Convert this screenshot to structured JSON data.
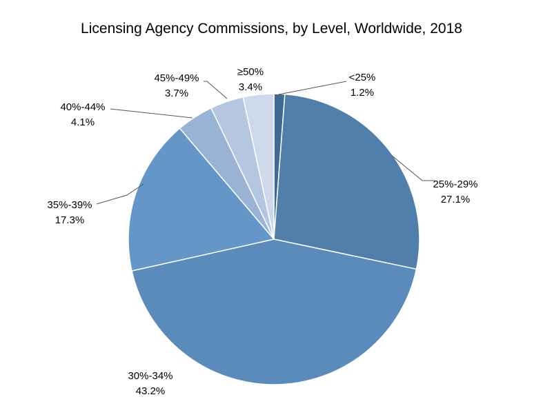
{
  "chart_data": {
    "type": "pie",
    "title": "Licensing Agency Commissions, by Level, Worldwide, 2018",
    "start_angle_deg": 0,
    "direction": "clockwise",
    "slices": [
      {
        "label": "<25%",
        "value_label": "1.2%",
        "value": 1.2,
        "color": "#3f6a93"
      },
      {
        "label": "25%-29%",
        "value_label": "27.1%",
        "value": 27.1,
        "color": "#507fab"
      },
      {
        "label": "30%-34%",
        "value_label": "43.2%",
        "value": 43.2,
        "color": "#5b8bbb"
      },
      {
        "label": "35%-39%",
        "value_label": "17.3%",
        "value": 17.3,
        "color": "#6497c7"
      },
      {
        "label": "40%-44%",
        "value_label": "4.1%",
        "value": 4.1,
        "color": "#98b3d4"
      },
      {
        "label": "45%-49%",
        "value_label": "3.7%",
        "value": 3.7,
        "color": "#b4c7df"
      },
      {
        "label": "≥50%",
        "value_label": "3.4%",
        "value": 3.4,
        "color": "#cdd9ea"
      }
    ]
  }
}
